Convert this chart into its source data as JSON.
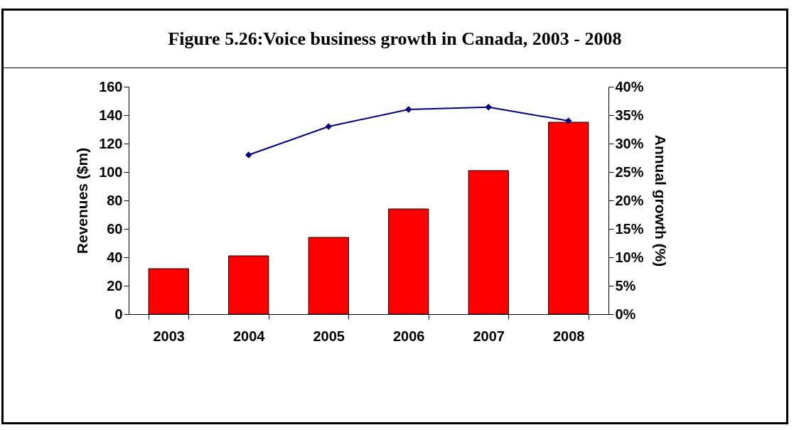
{
  "chart_data": {
    "type": "bar",
    "title": "Figure 5.26:Voice business growth in Canada, 2003 - 2008",
    "categories": [
      "2003",
      "2004",
      "2005",
      "2006",
      "2007",
      "2008"
    ],
    "ylabel": "Revenues ($m)",
    "y2label": "Annual growth (%)",
    "series": [
      {
        "color": "#ff0000",
        "values": [
          32,
          41,
          54,
          74,
          101,
          135
        ]
      },
      {
        "type": "line",
        "axis": "y2",
        "color": "#000080",
        "marker": "diamond",
        "values": [
          null,
          28,
          33,
          36,
          36.4,
          34
        ]
      }
    ],
    "ylim": [
      0,
      160
    ],
    "yticks": [
      0,
      20,
      40,
      60,
      80,
      100,
      120,
      140,
      160
    ],
    "y2lim": [
      0,
      40
    ],
    "y2ticks": [
      {
        "value": 0,
        "label": "0%"
      },
      {
        "value": 5,
        "label": "5%"
      },
      {
        "value": 10,
        "label": "10%"
      },
      {
        "value": 15,
        "label": "15%"
      },
      {
        "value": 20,
        "label": "20%"
      },
      {
        "value": 25,
        "label": "25%"
      },
      {
        "value": 30,
        "label": "30%"
      },
      {
        "value": 35,
        "label": "35%"
      },
      {
        "value": 40,
        "label": "40%"
      }
    ],
    "grid": false
  }
}
